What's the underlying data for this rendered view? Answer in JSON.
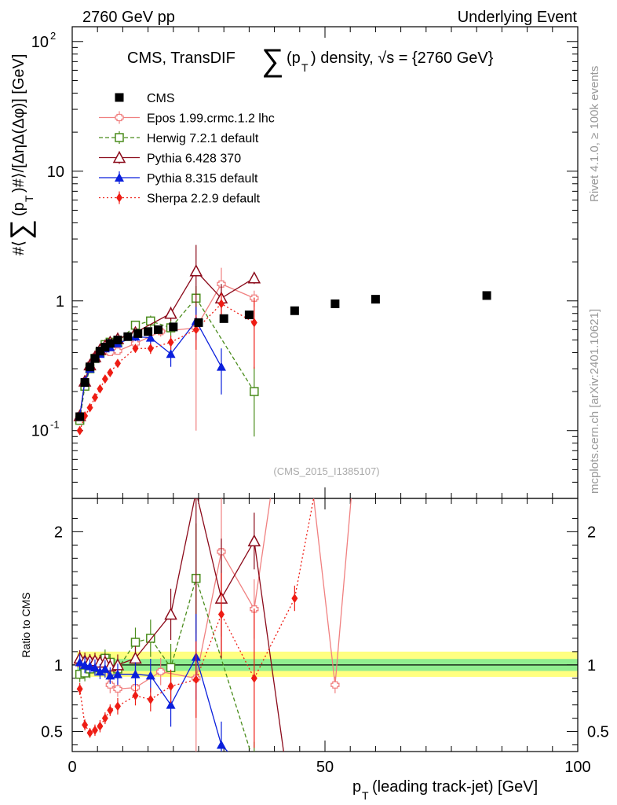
{
  "header": {
    "left": "2760 GeV pp",
    "right": "Underlying Event",
    "side_top": "Rivet 4.1.0, ≥ 100k events",
    "side_bottom": "mcplots.cern.ch [arXiv:2401.10621]"
  },
  "chart_data": {
    "type": "line",
    "title_parts": {
      "pre": "CMS, TransDIF ",
      "p": "(p",
      "t": "T",
      "post": ") density, √s = {2760 GeV}"
    },
    "watermark": "(CMS_2015_I1385107)",
    "xlabel": "(leading track-jet) [GeV]",
    "xlabel_p": "p",
    "xlabel_t": "T",
    "ylabel": "#⟨∑(pT)#⟩/[ΔηΔ(Δφ)] [GeV]",
    "ratio_ylabel": "Ratio to CMS",
    "xlim": [
      0,
      100
    ],
    "main_ylim": [
      0.03,
      130
    ],
    "main_ytick_labels": [
      "10",
      "-1",
      "1",
      "10",
      "10",
      "2"
    ],
    "x_ticks": [
      0,
      50,
      100
    ],
    "ratio_ylim": [
      0.35,
      2.25
    ],
    "ratio_ticks": [
      0.5,
      1,
      2
    ],
    "legend": [
      "CMS",
      "Epos 1.99.crmc.1.2 lhc",
      "Herwig 7.2.1 default",
      "Pythia 6.428 370",
      "Pythia 8.315 default",
      "Sherpa 2.2.9 default"
    ],
    "data": {
      "name": "CMS",
      "color": "#000000",
      "x": [
        1.5,
        2.5,
        3.5,
        4.5,
        5.5,
        6.5,
        7.5,
        9,
        11,
        13,
        15,
        17,
        20,
        25,
        30,
        35,
        44,
        52,
        60,
        82
      ],
      "y": [
        0.128,
        0.235,
        0.31,
        0.36,
        0.41,
        0.44,
        0.47,
        0.5,
        0.53,
        0.56,
        0.58,
        0.6,
        0.63,
        0.68,
        0.73,
        0.78,
        0.84,
        0.95,
        1.03,
        1.1
      ]
    },
    "band": {
      "x": [
        1,
        100
      ],
      "inner": [
        0.955,
        1.045
      ],
      "outer": [
        0.91,
        1.1
      ]
    },
    "series": [
      {
        "name": "Epos 1.99.crmc.1.2 lhc",
        "color": "#f08080",
        "marker": "cross",
        "dash": "",
        "x": [
          1.5,
          2.5,
          3.5,
          4.5,
          5.5,
          6.5,
          7.5,
          9,
          12.5,
          17.5,
          24.5,
          29.5,
          36
        ],
        "y": [
          0.13,
          0.24,
          0.32,
          0.37,
          0.41,
          0.44,
          0.4,
          0.41,
          0.47,
          0.58,
          0.62,
          1.35,
          1.05
        ],
        "err": [
          0.005,
          0.01,
          0.01,
          0.01,
          0.015,
          0.02,
          0.02,
          0.02,
          0.03,
          0.05,
          0.52,
          0.45,
          0.15
        ],
        "ratio": [
          1.01,
          1.02,
          1.03,
          1.03,
          1.0,
          1.0,
          0.85,
          0.82,
          0.83,
          0.95,
          0.9,
          1.85,
          1.42,
          null,
          0.85
        ],
        "ratio_x": [
          1.5,
          2.5,
          3.5,
          4.5,
          5.5,
          6.5,
          7.5,
          9,
          12.5,
          17.5,
          24.5,
          29.5,
          36,
          44,
          52
        ],
        "ratio_extra": [
          [
            44,
            3.5
          ],
          [
            52,
            0.85
          ],
          [
            58,
            3.5
          ]
        ]
      },
      {
        "name": "Herwig 7.2.1 default",
        "color": "#4a8c1c",
        "marker": "square",
        "dash": "5,3",
        "x": [
          1.5,
          2.5,
          3.5,
          4.5,
          5.5,
          6.5,
          7.5,
          9,
          12.5,
          15.5,
          19.5,
          24.5,
          36
        ],
        "y": [
          0.12,
          0.22,
          0.3,
          0.36,
          0.4,
          0.46,
          0.48,
          0.48,
          0.65,
          0.7,
          0.62,
          1.05,
          0.2
        ],
        "err": [
          0.005,
          0.01,
          0.015,
          0.015,
          0.02,
          0.02,
          0.02,
          0.03,
          0.05,
          0.07,
          0.1,
          0.25,
          0.11
        ],
        "ratio": [
          0.93,
          0.94,
          0.97,
          1.0,
          0.98,
          1.05,
          1.02,
          0.97,
          1.17,
          1.2,
          0.98,
          1.65,
          0.26
        ],
        "ratio_x": [
          1.5,
          2.5,
          3.5,
          4.5,
          5.5,
          6.5,
          7.5,
          9,
          12.5,
          15.5,
          19.5,
          24.5,
          36
        ]
      },
      {
        "name": "Pythia 6.428 370",
        "color": "#8b0a1a",
        "marker": "triangle-open",
        "dash": "",
        "x": [
          1.5,
          2.5,
          3.5,
          4.5,
          5.5,
          6.5,
          7.5,
          9,
          12.5,
          19.5,
          24.5,
          29.5,
          36
        ],
        "y": [
          0.13,
          0.24,
          0.32,
          0.37,
          0.42,
          0.45,
          0.48,
          0.51,
          0.57,
          0.8,
          1.7,
          1.05,
          1.5
        ],
        "err": [
          0.005,
          0.01,
          0.01,
          0.015,
          0.015,
          0.02,
          0.02,
          0.03,
          0.04,
          0.1,
          1.0,
          0.3,
          0.15
        ],
        "ratio": [
          1.05,
          1.03,
          1.03,
          1.03,
          1.02,
          1.02,
          0.99,
          1.0,
          1.05,
          1.38,
          2.3,
          1.5,
          1.93
        ],
        "ratio_x": [
          1.5,
          2.5,
          3.5,
          4.5,
          5.5,
          6.5,
          7.5,
          9,
          12.5,
          19.5,
          24.5,
          29.5,
          36
        ],
        "ratio_extra": [
          [
            42,
            0.3
          ]
        ]
      },
      {
        "name": "Pythia 8.315 default",
        "color": "#0a1fdc",
        "marker": "triangle",
        "dash": "",
        "x": [
          1.5,
          2.5,
          3.5,
          4.5,
          5.5,
          6.5,
          7.5,
          9,
          12.5,
          15.5,
          19.5,
          24.5,
          29.5
        ],
        "y": [
          0.13,
          0.24,
          0.3,
          0.36,
          0.39,
          0.43,
          0.44,
          0.47,
          0.53,
          0.52,
          0.39,
          0.7,
          0.31
        ],
        "err": [
          0.005,
          0.01,
          0.01,
          0.015,
          0.015,
          0.02,
          0.02,
          0.03,
          0.04,
          0.06,
          0.08,
          0.2,
          0.12
        ],
        "ratio": [
          1.02,
          1.0,
          0.99,
          0.98,
          0.95,
          0.97,
          0.92,
          0.93,
          0.93,
          0.92,
          0.7,
          1.06,
          0.4
        ],
        "ratio_x": [
          1.5,
          2.5,
          3.5,
          4.5,
          5.5,
          6.5,
          7.5,
          9,
          12.5,
          15.5,
          19.5,
          24.5,
          29.5
        ],
        "ratio_extra": [
          [
            32,
            0.3
          ]
        ]
      },
      {
        "name": "Sherpa 2.2.9 default",
        "color": "#ee1c14",
        "marker": "diamond",
        "dash": "2,3",
        "x": [
          1.5,
          2.5,
          3.5,
          4.5,
          5.5,
          6.5,
          7.5,
          9,
          12.5,
          15.5,
          19.5,
          24.5,
          29.5,
          36
        ],
        "y": [
          0.1,
          0.13,
          0.15,
          0.18,
          0.21,
          0.25,
          0.28,
          0.33,
          0.43,
          0.43,
          0.48,
          0.6,
          0.95,
          0.68
        ],
        "err": [
          0.003,
          0.005,
          0.005,
          0.008,
          0.01,
          0.01,
          0.01,
          0.02,
          0.03,
          0.04,
          0.06,
          0.18,
          0.2,
          0.38
        ],
        "ratio": [
          0.82,
          0.55,
          0.49,
          0.51,
          0.54,
          0.6,
          0.66,
          0.69,
          0.77,
          0.74,
          0.84,
          0.89,
          1.38,
          0.9,
          1.5
        ],
        "ratio_x": [
          1.5,
          2.5,
          3.5,
          4.5,
          5.5,
          6.5,
          7.5,
          9,
          12.5,
          15.5,
          19.5,
          24.5,
          29.5,
          36,
          44
        ],
        "ratio_extra": [
          [
            49,
            2.5
          ]
        ]
      }
    ]
  }
}
